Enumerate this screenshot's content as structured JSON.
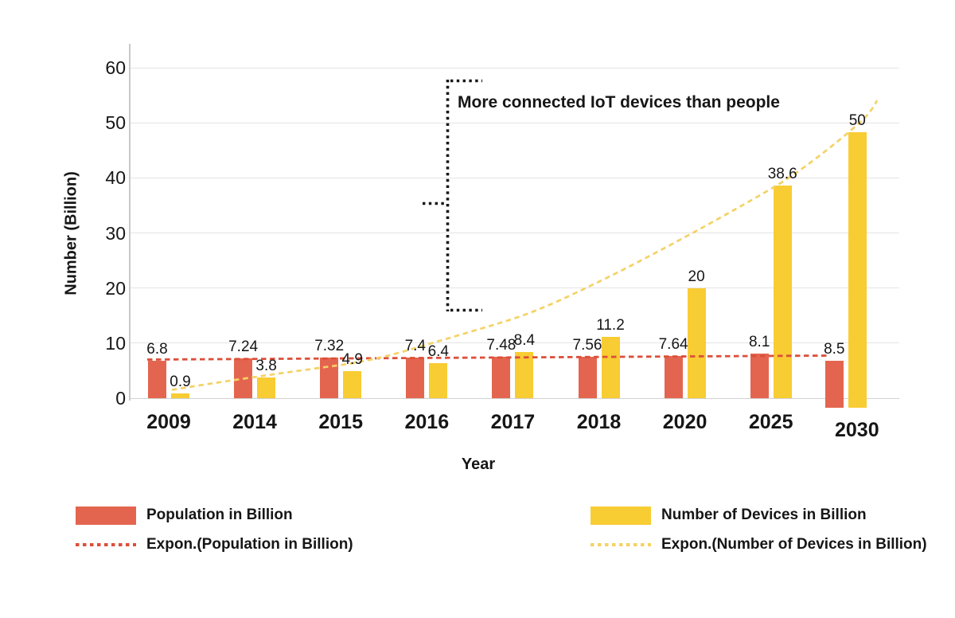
{
  "chart_data": {
    "type": "bar",
    "title": "",
    "annotation": "More connected IoT devices than people",
    "xlabel": "Year",
    "ylabel": "Number (Billion)",
    "categories": [
      "2009",
      "2014",
      "2015",
      "2016",
      "2017",
      "2018",
      "2020",
      "2025",
      "2030"
    ],
    "series": [
      {
        "name": "Population in Billion",
        "color": "#E4654F",
        "values": [
          6.8,
          7.24,
          7.32,
          7.4,
          7.48,
          7.56,
          7.64,
          8.1,
          8.5
        ]
      },
      {
        "name": "Number of Devices in Billion",
        "color": "#F8CC33",
        "values": [
          0.9,
          3.8,
          4.9,
          6.4,
          8.4,
          11.2,
          20,
          38.6,
          50
        ]
      }
    ],
    "trendlines": [
      {
        "name": "Expon.(Population in Billion)",
        "color": "#DC4F3A",
        "style": "dashed"
      },
      {
        "name": "Expon.(Number of Devices in Billion)",
        "color": "#F4D266",
        "style": "dashed"
      }
    ],
    "yticks": [
      0,
      10,
      20,
      30,
      40,
      50,
      60
    ],
    "ylim": [
      0,
      60
    ],
    "grid": true,
    "legend_position": "bottom",
    "text_color": "#161616",
    "grid_color": "#E4E4E4",
    "axis_color": "#C9C9C9"
  }
}
